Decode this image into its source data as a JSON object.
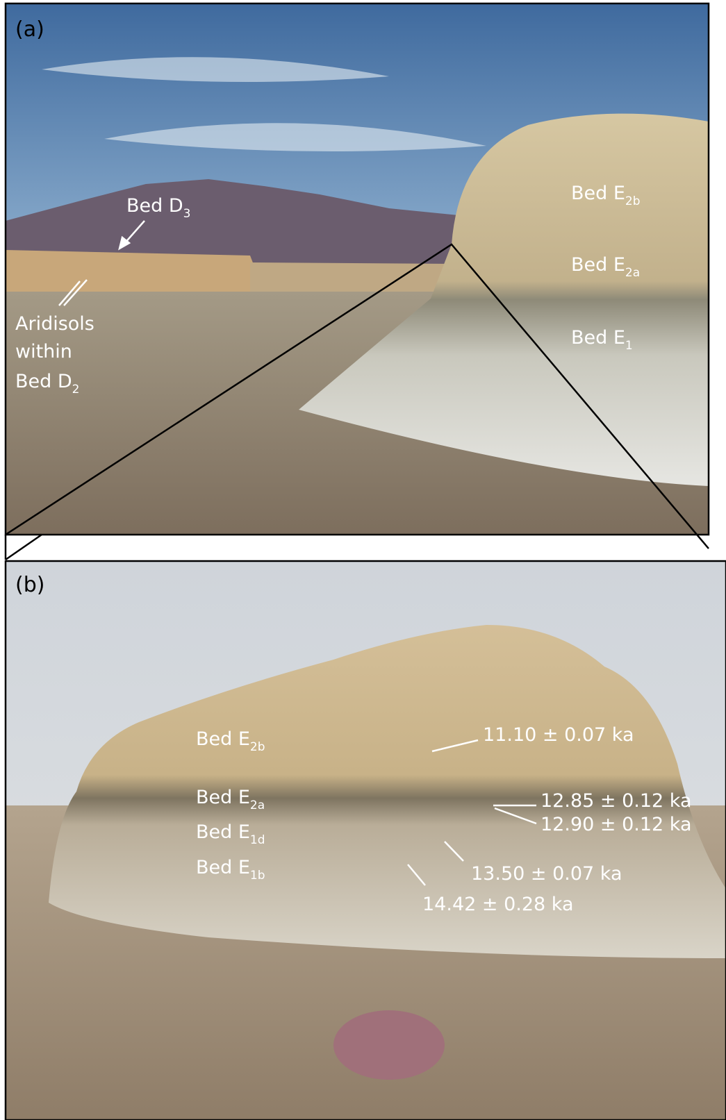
{
  "panel_a": {
    "label": "(a)",
    "beds": [
      {
        "text": "Bed D",
        "sub": "3"
      },
      {
        "text": "Bed E",
        "sub": "2b"
      },
      {
        "text": "Bed E",
        "sub": "2a"
      },
      {
        "text": "Bed E",
        "sub": "1"
      }
    ],
    "aridisols": {
      "lines": [
        "Aridisols",
        "within",
        "Bed D"
      ],
      "sub": "2"
    }
  },
  "panel_b": {
    "label": "(b)",
    "beds": [
      {
        "text": "Bed E",
        "sub": "2b"
      },
      {
        "text": "Bed E",
        "sub": "2a"
      },
      {
        "text": "Bed E",
        "sub": "1d"
      },
      {
        "text": "Bed E",
        "sub": "1b"
      }
    ],
    "dates": [
      "11.10 ± 0.07 ka",
      "12.85 ± 0.12 ka",
      "12.90 ± 0.12 ka",
      "13.50 ± 0.07 ka",
      "14.42 ± 0.28 ka"
    ]
  }
}
